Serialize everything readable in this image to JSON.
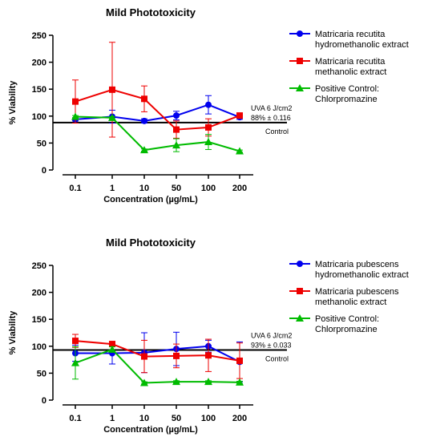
{
  "chart_data": [
    {
      "type": "line",
      "title": "Mild Phototoxicity",
      "xlabel": "Concentration (µg/mL)",
      "ylabel": "% Viability",
      "categories": [
        "0.1",
        "1",
        "10",
        "50",
        "100",
        "200"
      ],
      "ylim": [
        0,
        250
      ],
      "yticks": [
        "0",
        "50",
        "100",
        "150",
        "200",
        "250"
      ],
      "reference_line": {
        "value": 88,
        "label_lines": [
          "UVA 6 J/cm2",
          "88% ± 0.116"
        ],
        "below_label": "Control"
      },
      "legend_position": "right",
      "series": [
        {
          "name_lines": [
            "Matricaria recutita",
            "hydromethanolic extract"
          ],
          "color": "#0000ee",
          "marker": "circle",
          "values": [
            94,
            99,
            91,
            101,
            121,
            98
          ],
          "error": [
            3,
            12,
            4,
            8,
            17,
            4
          ]
        },
        {
          "name_lines": [
            "Matricaria recutita",
            "methanolic extract"
          ],
          "color": "#ee0000",
          "marker": "square",
          "values": [
            127,
            149,
            132,
            75,
            79,
            101
          ],
          "error": [
            40,
            88,
            24,
            16,
            16,
            5
          ]
        },
        {
          "name_lines": [
            "Positive Control:",
            "Chlorpromazine"
          ],
          "color": "#00bb00",
          "marker": "triangle",
          "values": [
            99,
            97,
            37,
            46,
            52,
            35
          ],
          "error": [
            2,
            2,
            2,
            12,
            14,
            2
          ]
        }
      ]
    },
    {
      "type": "line",
      "title": "Mild Phototoxicity",
      "xlabel": "Concentration (µg/mL)",
      "ylabel": "% Viability",
      "categories": [
        "0.1",
        "1",
        "10",
        "50",
        "100",
        "200"
      ],
      "ylim": [
        0,
        250
      ],
      "yticks": [
        "0",
        "50",
        "100",
        "150",
        "200",
        "250"
      ],
      "reference_line": {
        "value": 93,
        "label_lines": [
          "UVA 6 J/cm2",
          "93% ± 0.033"
        ],
        "below_label": "Control"
      },
      "legend_position": "right",
      "series": [
        {
          "name_lines": [
            "Matricaria pubescens",
            "hydromethanolic extract"
          ],
          "color": "#0000ee",
          "marker": "circle",
          "values": [
            87,
            87,
            88,
            95,
            100,
            71
          ],
          "error": [
            15,
            20,
            37,
            31,
            11,
            37
          ]
        },
        {
          "name_lines": [
            "Matricaria pubescens",
            "methanolic extract"
          ],
          "color": "#ee0000",
          "marker": "square",
          "values": [
            110,
            104,
            81,
            82,
            83,
            73
          ],
          "error": [
            12,
            5,
            30,
            22,
            30,
            33
          ]
        },
        {
          "name_lines": [
            "Positive Control:",
            "Chlorpromazine"
          ],
          "color": "#00bb00",
          "marker": "triangle",
          "values": [
            69,
            94,
            32,
            34,
            34,
            33
          ],
          "error": [
            30,
            5,
            2,
            2,
            2,
            2
          ]
        }
      ]
    }
  ]
}
